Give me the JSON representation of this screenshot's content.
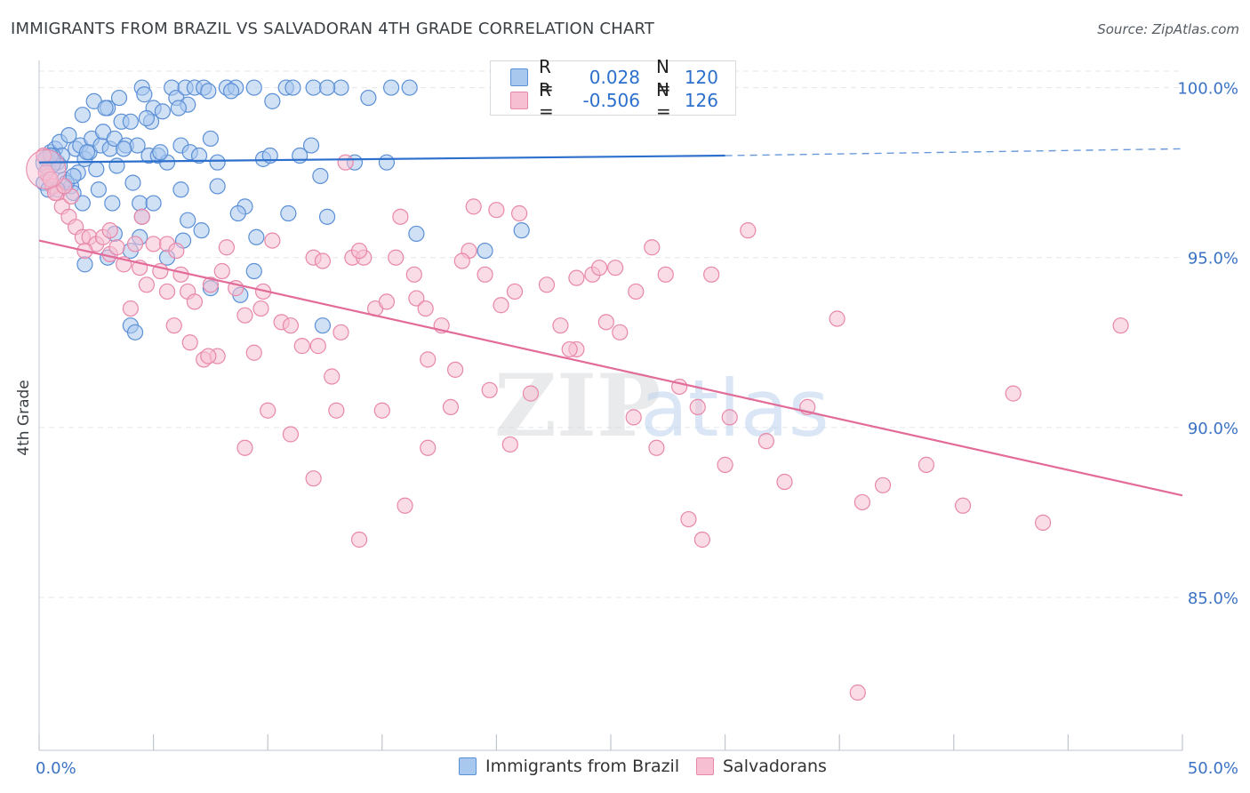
{
  "title": "IMMIGRANTS FROM BRAZIL VS SALVADORAN 4TH GRADE CORRELATION CHART",
  "source": "Source: ZipAtlas.com",
  "watermark": {
    "zip": "ZIP",
    "atlas": "atlas"
  },
  "legend": {
    "rows": [
      {
        "r_label": "R =",
        "r_value": "0.028",
        "n_label": "N =",
        "n_value": "120"
      },
      {
        "r_label": "R =",
        "r_value": "-0.506",
        "n_label": "N =",
        "n_value": "126"
      }
    ]
  },
  "bottom_legend": [
    "Immigrants from Brazil",
    "Salvadorans"
  ],
  "colors": {
    "blue_fill": "#a9c8ee",
    "blue_stroke": "#5b8fd6",
    "blue_line": "#2c6fcd",
    "pink_fill": "#f6bfd2",
    "pink_stroke": "#e887a9",
    "pink_line": "#e26b98",
    "axis_label": "#3b72c4",
    "grid": "#e3e6ea"
  },
  "chart_data": {
    "type": "scatter",
    "title": "IMMIGRANTS FROM BRAZIL VS SALVADORAN 4TH GRADE CORRELATION CHART",
    "xlabel": "",
    "ylabel": "4th Grade",
    "xlim": [
      0,
      50
    ],
    "ylim": [
      80.5,
      100.8
    ],
    "x_tick_labels": [
      "0.0%",
      "50.0%"
    ],
    "y_ticks": [
      85,
      90,
      95,
      100
    ],
    "y_tick_labels": [
      "85.0%",
      "90.0%",
      "95.0%",
      "100.0%"
    ],
    "grid": true,
    "legend_position": "top-center",
    "series": [
      {
        "name": "Immigrants from Brazil",
        "R": 0.028,
        "N": 120,
        "trend": {
          "x": [
            0,
            30
          ],
          "y": [
            97.8,
            98.0
          ],
          "dashed_to": [
            50,
            98.2
          ]
        },
        "points": [
          [
            0.2,
            97.2
          ],
          [
            0.3,
            97.9
          ],
          [
            0.4,
            97.6
          ],
          [
            0.5,
            98.1
          ],
          [
            0.6,
            97.9
          ],
          [
            0.7,
            98.2
          ],
          [
            0.8,
            97.8
          ],
          [
            0.9,
            98.4
          ],
          [
            1.0,
            98.0
          ],
          [
            1.1,
            97.3
          ],
          [
            1.3,
            98.6
          ],
          [
            1.4,
            97.1
          ],
          [
            1.5,
            96.9
          ],
          [
            1.6,
            98.2
          ],
          [
            1.7,
            97.5
          ],
          [
            1.8,
            98.3
          ],
          [
            1.9,
            99.2
          ],
          [
            2.0,
            97.9
          ],
          [
            2.2,
            98.1
          ],
          [
            2.3,
            98.5
          ],
          [
            2.4,
            99.6
          ],
          [
            2.5,
            97.6
          ],
          [
            2.7,
            98.3
          ],
          [
            2.8,
            98.7
          ],
          [
            3.0,
            99.4
          ],
          [
            3.1,
            98.2
          ],
          [
            3.2,
            96.6
          ],
          [
            3.3,
            98.5
          ],
          [
            3.4,
            97.7
          ],
          [
            3.5,
            99.7
          ],
          [
            3.6,
            99.0
          ],
          [
            3.8,
            98.3
          ],
          [
            4.0,
            99.0
          ],
          [
            4.1,
            97.2
          ],
          [
            4.3,
            98.3
          ],
          [
            4.4,
            96.6
          ],
          [
            4.5,
            100.0
          ],
          [
            4.6,
            99.8
          ],
          [
            4.8,
            98.0
          ],
          [
            5.0,
            99.4
          ],
          [
            5.2,
            98.0
          ],
          [
            5.4,
            99.3
          ],
          [
            5.6,
            97.8
          ],
          [
            5.8,
            100.0
          ],
          [
            6.0,
            99.7
          ],
          [
            6.2,
            98.3
          ],
          [
            6.4,
            100.0
          ],
          [
            6.6,
            98.1
          ],
          [
            6.8,
            100.0
          ],
          [
            7.2,
            100.0
          ],
          [
            7.5,
            98.5
          ],
          [
            7.8,
            97.1
          ],
          [
            8.2,
            100.0
          ],
          [
            8.6,
            100.0
          ],
          [
            9.0,
            96.5
          ],
          [
            9.4,
            100.0
          ],
          [
            9.8,
            97.9
          ],
          [
            10.2,
            99.6
          ],
          [
            10.8,
            100.0
          ],
          [
            11.4,
            98.0
          ],
          [
            12.0,
            100.0
          ],
          [
            12.6,
            96.2
          ],
          [
            13.2,
            100.0
          ],
          [
            14.4,
            99.7
          ],
          [
            15.2,
            97.8
          ],
          [
            16.2,
            100.0
          ],
          [
            1.2,
            97.2
          ],
          [
            1.9,
            96.6
          ],
          [
            2.6,
            97.0
          ],
          [
            3.3,
            95.7
          ],
          [
            4.0,
            95.2
          ],
          [
            4.5,
            96.2
          ],
          [
            5.0,
            96.6
          ],
          [
            5.6,
            95.0
          ],
          [
            6.2,
            97.0
          ],
          [
            6.5,
            96.1
          ],
          [
            7.1,
            95.8
          ],
          [
            7.8,
            97.8
          ],
          [
            2.0,
            94.8
          ],
          [
            3.0,
            95.0
          ],
          [
            4.4,
            95.6
          ],
          [
            8.7,
            96.3
          ],
          [
            9.4,
            94.6
          ],
          [
            11.9,
            98.3
          ],
          [
            12.3,
            97.4
          ],
          [
            13.8,
            97.8
          ],
          [
            16.5,
            95.7
          ],
          [
            19.5,
            95.2
          ],
          [
            21.1,
            95.8
          ],
          [
            8.8,
            93.9
          ],
          [
            4.0,
            93.0
          ],
          [
            4.2,
            92.8
          ],
          [
            6.3,
            95.5
          ],
          [
            7.5,
            94.1
          ],
          [
            12.4,
            93.0
          ],
          [
            9.5,
            95.6
          ],
          [
            10.9,
            96.3
          ],
          [
            0.6,
            98.0
          ],
          [
            0.8,
            97.0
          ],
          [
            1.5,
            97.4
          ],
          [
            2.1,
            98.1
          ],
          [
            3.7,
            98.2
          ],
          [
            4.9,
            99.0
          ],
          [
            5.3,
            98.1
          ],
          [
            6.5,
            99.5
          ],
          [
            7.0,
            98.0
          ],
          [
            10.1,
            98.0
          ],
          [
            11.1,
            100.0
          ],
          [
            15.4,
            100.0
          ],
          [
            0.9,
            97.7
          ],
          [
            0.4,
            97.0
          ],
          [
            0.3,
            97.9
          ],
          [
            0.5,
            98.0
          ],
          [
            2.9,
            99.4
          ],
          [
            4.7,
            99.1
          ],
          [
            6.1,
            99.4
          ],
          [
            7.4,
            99.9
          ],
          [
            8.4,
            99.9
          ],
          [
            12.6,
            100.0
          ],
          [
            30.0,
            100.0
          ]
        ]
      },
      {
        "name": "Salvadorans",
        "R": -0.506,
        "N": 126,
        "trend": {
          "x": [
            0,
            50
          ],
          "y": [
            95.5,
            88.0
          ]
        },
        "points": [
          [
            0.2,
            98.0
          ],
          [
            0.4,
            97.4
          ],
          [
            0.6,
            97.1
          ],
          [
            0.8,
            96.9
          ],
          [
            1.0,
            96.5
          ],
          [
            1.3,
            96.2
          ],
          [
            1.6,
            95.9
          ],
          [
            1.9,
            95.6
          ],
          [
            2.2,
            95.6
          ],
          [
            2.5,
            95.4
          ],
          [
            2.8,
            95.6
          ],
          [
            3.1,
            95.1
          ],
          [
            3.4,
            95.3
          ],
          [
            3.7,
            94.8
          ],
          [
            4.0,
            93.5
          ],
          [
            4.4,
            94.7
          ],
          [
            4.7,
            94.2
          ],
          [
            5.0,
            95.4
          ],
          [
            5.3,
            94.6
          ],
          [
            5.6,
            94.0
          ],
          [
            5.9,
            93.0
          ],
          [
            6.2,
            94.5
          ],
          [
            6.5,
            94.0
          ],
          [
            6.8,
            93.7
          ],
          [
            7.2,
            92.0
          ],
          [
            7.5,
            94.2
          ],
          [
            7.8,
            92.1
          ],
          [
            8.2,
            95.3
          ],
          [
            8.6,
            94.1
          ],
          [
            9.0,
            93.3
          ],
          [
            9.4,
            92.2
          ],
          [
            9.8,
            94.0
          ],
          [
            10.2,
            95.5
          ],
          [
            10.6,
            93.1
          ],
          [
            11.0,
            93.0
          ],
          [
            11.5,
            92.4
          ],
          [
            12.0,
            95.0
          ],
          [
            12.4,
            94.9
          ],
          [
            12.8,
            91.5
          ],
          [
            13.2,
            92.8
          ],
          [
            13.7,
            95.0
          ],
          [
            14.2,
            95.0
          ],
          [
            14.7,
            93.5
          ],
          [
            15.2,
            93.7
          ],
          [
            15.8,
            96.2
          ],
          [
            16.4,
            94.5
          ],
          [
            17.0,
            92.0
          ],
          [
            17.6,
            93.0
          ],
          [
            18.2,
            91.7
          ],
          [
            18.8,
            95.2
          ],
          [
            19.5,
            94.5
          ],
          [
            20.2,
            93.6
          ],
          [
            20.8,
            94.0
          ],
          [
            21.5,
            91.0
          ],
          [
            22.2,
            94.2
          ],
          [
            22.8,
            93.0
          ],
          [
            23.5,
            92.3
          ],
          [
            24.2,
            94.5
          ],
          [
            24.8,
            93.1
          ],
          [
            25.4,
            92.8
          ],
          [
            26.1,
            94.0
          ],
          [
            26.8,
            95.3
          ],
          [
            27.4,
            94.5
          ],
          [
            28.0,
            91.2
          ],
          [
            28.8,
            90.6
          ],
          [
            29.4,
            94.5
          ],
          [
            30.0,
            88.9
          ],
          [
            31.0,
            95.8
          ],
          [
            31.8,
            89.6
          ],
          [
            32.6,
            88.4
          ],
          [
            33.6,
            90.6
          ],
          [
            34.9,
            93.2
          ],
          [
            36.0,
            87.8
          ],
          [
            36.9,
            88.3
          ],
          [
            38.8,
            88.9
          ],
          [
            40.4,
            87.7
          ],
          [
            42.6,
            91.0
          ],
          [
            43.9,
            87.2
          ],
          [
            47.3,
            93.0
          ],
          [
            10.0,
            90.5
          ],
          [
            11.0,
            89.8
          ],
          [
            12.0,
            88.5
          ],
          [
            13.0,
            90.5
          ],
          [
            14.0,
            86.7
          ],
          [
            15.0,
            90.5
          ],
          [
            16.0,
            87.7
          ],
          [
            17.0,
            89.4
          ],
          [
            18.0,
            90.6
          ],
          [
            9.0,
            89.4
          ],
          [
            7.4,
            92.1
          ],
          [
            5.6,
            95.4
          ],
          [
            4.5,
            96.2
          ],
          [
            1.4,
            96.8
          ],
          [
            3.1,
            95.8
          ],
          [
            6.0,
            95.2
          ],
          [
            8.0,
            94.6
          ],
          [
            19.0,
            96.5
          ],
          [
            20.0,
            96.4
          ],
          [
            21.0,
            96.3
          ],
          [
            23.5,
            94.4
          ],
          [
            24.5,
            94.7
          ],
          [
            25.2,
            94.7
          ],
          [
            14.0,
            95.2
          ],
          [
            16.5,
            93.8
          ],
          [
            12.2,
            92.4
          ],
          [
            9.7,
            93.5
          ],
          [
            27.0,
            89.4
          ],
          [
            29.0,
            86.7
          ],
          [
            28.4,
            87.3
          ],
          [
            35.8,
            82.2
          ],
          [
            19.7,
            91.1
          ],
          [
            20.6,
            89.5
          ],
          [
            23.2,
            92.3
          ],
          [
            26.0,
            90.3
          ],
          [
            30.2,
            90.3
          ],
          [
            0.3,
            97.5
          ],
          [
            0.5,
            97.3
          ],
          [
            0.7,
            96.9
          ],
          [
            1.1,
            97.1
          ],
          [
            2.0,
            95.2
          ],
          [
            6.6,
            92.5
          ],
          [
            13.4,
            97.8
          ],
          [
            15.6,
            95.0
          ],
          [
            16.9,
            93.5
          ],
          [
            18.5,
            94.9
          ],
          [
            4.2,
            95.4
          ]
        ]
      }
    ]
  }
}
